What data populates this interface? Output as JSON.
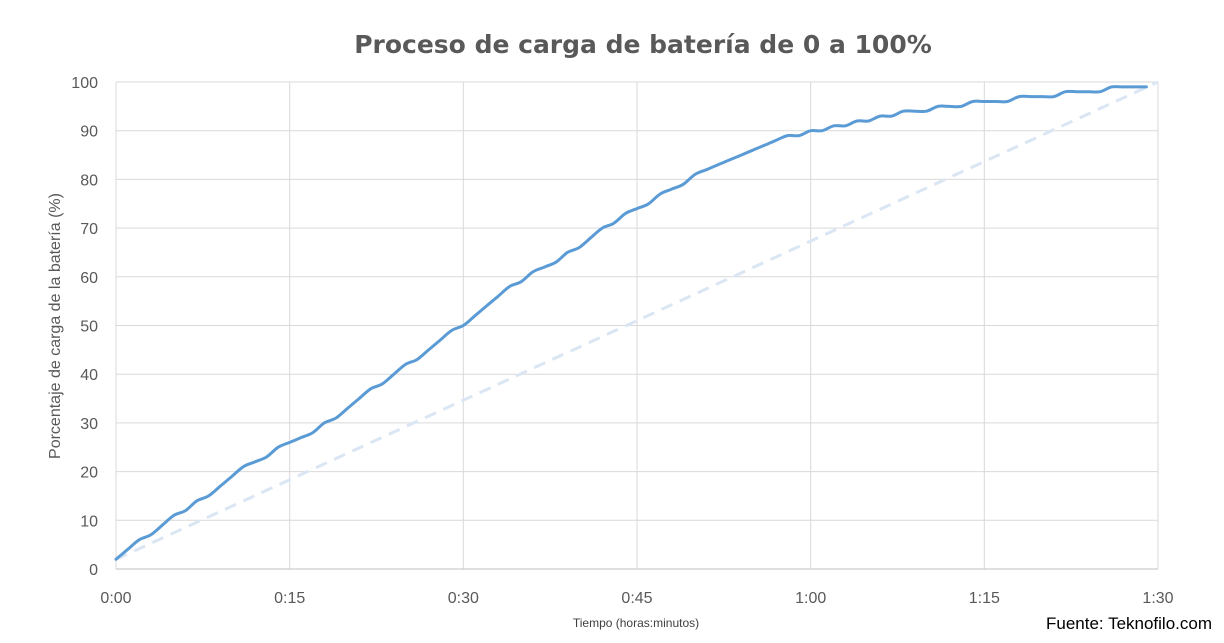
{
  "chart_data": {
    "type": "line",
    "title": "Proceso de carga de batería de 0 a 100%",
    "xlabel": "Tiempo (horas:minutos)",
    "ylabel": "Porcentaje de carga de la batería (%)",
    "x_unit": "minutes",
    "xlim": [
      0,
      90
    ],
    "ylim": [
      0,
      100
    ],
    "x_ticks": [
      {
        "value": 0,
        "label": "0:00"
      },
      {
        "value": 15,
        "label": "0:15"
      },
      {
        "value": 30,
        "label": "0:30"
      },
      {
        "value": 45,
        "label": "0:45"
      },
      {
        "value": 60,
        "label": "1:00"
      },
      {
        "value": 75,
        "label": "1:15"
      },
      {
        "value": 90,
        "label": "1:30"
      }
    ],
    "y_ticks": [
      0,
      10,
      20,
      30,
      40,
      50,
      60,
      70,
      80,
      90,
      100
    ],
    "grid": true,
    "legend": "none",
    "series": [
      {
        "color": "#5b9bd5",
        "style": "solid",
        "x": [
          0,
          1,
          2,
          3,
          4,
          5,
          6,
          7,
          8,
          9,
          10,
          11,
          12,
          13,
          14,
          15,
          16,
          17,
          18,
          19,
          20,
          21,
          22,
          23,
          24,
          25,
          26,
          27,
          28,
          29,
          30,
          31,
          32,
          33,
          34,
          35,
          36,
          37,
          38,
          39,
          40,
          41,
          42,
          43,
          44,
          45,
          46,
          47,
          48,
          49,
          50,
          51,
          52,
          53,
          54,
          55,
          56,
          57,
          58,
          59,
          60,
          61,
          62,
          63,
          64,
          65,
          66,
          67,
          68,
          69,
          70,
          71,
          72,
          73,
          74,
          75,
          76,
          77,
          78,
          79,
          80,
          81,
          82,
          83,
          84,
          85,
          86,
          87,
          88,
          89
        ],
        "y": [
          2,
          4,
          6,
          7,
          9,
          11,
          12,
          14,
          15,
          17,
          19,
          21,
          22,
          23,
          25,
          26,
          27,
          28,
          30,
          31,
          33,
          35,
          37,
          38,
          40,
          42,
          43,
          45,
          47,
          49,
          50,
          52,
          54,
          56,
          58,
          59,
          61,
          62,
          63,
          65,
          66,
          68,
          70,
          71,
          73,
          74,
          75,
          77,
          78,
          79,
          81,
          82,
          83,
          84,
          85,
          86,
          87,
          88,
          89,
          89,
          90,
          90,
          91,
          91,
          92,
          92,
          93,
          93,
          94,
          94,
          94,
          95,
          95,
          95,
          96,
          96,
          96,
          96,
          97,
          97,
          97,
          97,
          98,
          98,
          98,
          98,
          99,
          99,
          99,
          99
        ]
      },
      {
        "color": "#dae6f3",
        "style": "dashed",
        "x": [
          0,
          90
        ],
        "y": [
          2,
          100
        ]
      }
    ]
  },
  "source": "Fuente: Teknofilo.com"
}
